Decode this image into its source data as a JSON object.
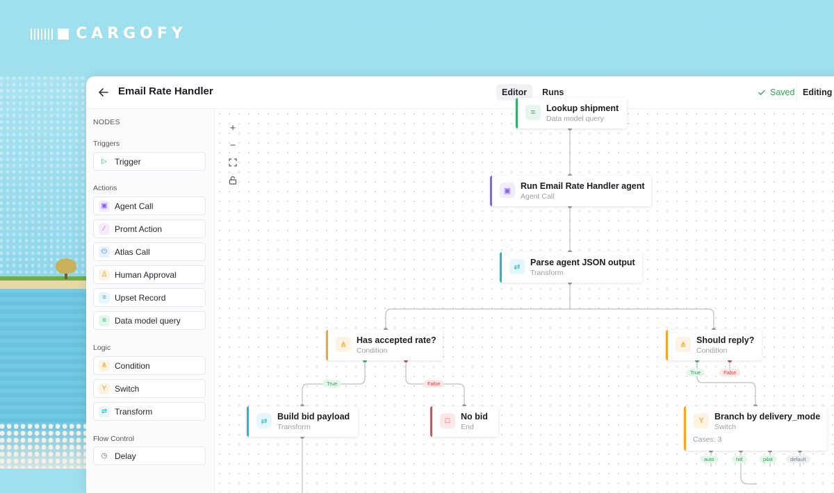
{
  "brand": {
    "name": "CARGOFY"
  },
  "header": {
    "title": "Email Rate Handler",
    "tabs": [
      {
        "label": "Editor"
      },
      {
        "label": "Runs"
      }
    ],
    "status": "Saved",
    "mode": "Editing"
  },
  "sidebar": {
    "heading": "NODES",
    "groups": [
      {
        "label": "Triggers",
        "items": [
          {
            "label": "Trigger",
            "icon": "play-icon"
          }
        ]
      },
      {
        "label": "Actions",
        "items": [
          {
            "label": "Agent Call",
            "icon": "robot-icon"
          },
          {
            "label": "Promt Action",
            "icon": "wand-icon"
          },
          {
            "label": "Atlas Call",
            "icon": "plug-icon"
          },
          {
            "label": "Human Approval",
            "icon": "person-icon"
          },
          {
            "label": "Upset Record",
            "icon": "database-icon"
          },
          {
            "label": "Data model query",
            "icon": "database-icon"
          }
        ]
      },
      {
        "label": "Logic",
        "items": [
          {
            "label": "Condition",
            "icon": "branch-icon"
          },
          {
            "label": "Switch",
            "icon": "switch-icon"
          },
          {
            "label": "Transform",
            "icon": "arrows-icon"
          }
        ]
      },
      {
        "label": "Flow Control",
        "items": [
          {
            "label": "Delay",
            "icon": "clock-icon"
          }
        ]
      }
    ]
  },
  "canvas": {
    "nodes": [
      {
        "id": "lookup",
        "title": "Lookup shipment",
        "subtitle": "Data model query",
        "accent": "#2fb36a"
      },
      {
        "id": "agent",
        "title": "Run Email Rate Handler agent",
        "subtitle": "Agent Call",
        "accent": "#8b5cf6"
      },
      {
        "id": "parse",
        "title": "Parse agent JSON output",
        "subtitle": "Transform",
        "accent": "#22b8cf"
      },
      {
        "id": "accepted",
        "title": "Has accepted rate?",
        "subtitle": "Condition",
        "accent": "#f5a623"
      },
      {
        "id": "reply",
        "title": "Should reply?",
        "subtitle": "Condition",
        "accent": "#f5a623"
      },
      {
        "id": "bid",
        "title": "Build bid payload",
        "subtitle": "Transform",
        "accent": "#22b8cf"
      },
      {
        "id": "nobid",
        "title": "No bid",
        "subtitle": "End",
        "accent": "#e5484d"
      },
      {
        "id": "branch",
        "title": "Branch by delivery_mode",
        "subtitle": "Switch",
        "extra": "Cases: 3",
        "accent": "#f5a623"
      }
    ],
    "edge_labels": {
      "true": "True",
      "false": "False",
      "auto": "auto",
      "hitl": "hitl",
      "pilot": "pilot",
      "default": "default"
    }
  }
}
